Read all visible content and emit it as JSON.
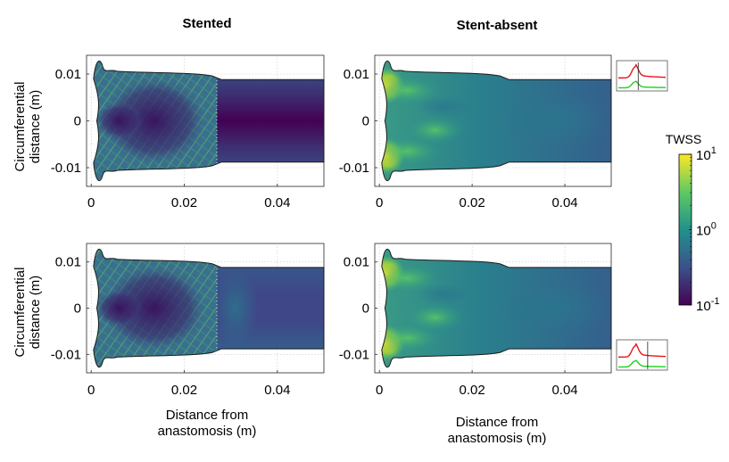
{
  "chart_data": {
    "type": "heatmap",
    "column_titles": [
      "Stented",
      "Stent-absent"
    ],
    "ylabel": [
      "Circumferential",
      "distance (m)"
    ],
    "xlabel": [
      "Distance from",
      "anastomosis (m)"
    ],
    "xlim": [
      -0.001,
      0.05
    ],
    "ylim": [
      -0.014,
      0.014
    ],
    "x_ticks": [
      0,
      0.02,
      0.04
    ],
    "x_tick_labels": [
      "0",
      "0.02",
      "0.04"
    ],
    "y_ticks": [
      0.01,
      0,
      -0.01
    ],
    "y_tick_labels": [
      "0.01",
      "0",
      "-0.01"
    ],
    "panels": [
      {
        "row": 1,
        "column": "Stented",
        "stent_end_x": 0.027
      },
      {
        "row": 1,
        "column": "Stent-absent"
      },
      {
        "row": 2,
        "column": "Stented",
        "stent_end_x": 0.027
      },
      {
        "row": 2,
        "column": "Stent-absent"
      }
    ],
    "colorbar": {
      "title": "TWSS",
      "scale": "log",
      "range": [
        0.1,
        10
      ],
      "tick_labels": [
        {
          "base": "10",
          "exp": "1",
          "value": 10
        },
        {
          "base": "10",
          "exp": "0",
          "value": 1
        },
        {
          "base": "10",
          "exp": "-1",
          "value": 0.1
        }
      ],
      "colormap": [
        "#440154",
        "#3b528b",
        "#21918c",
        "#5ec962",
        "#fde725"
      ]
    },
    "cycle_insets": [
      {
        "row": 1,
        "marker_phase": 0.42,
        "series_colors": [
          "#e8141c",
          "#1bd21b"
        ]
      },
      {
        "row": 2,
        "marker_phase": 0.62,
        "series_colors": [
          "#e8141c",
          "#1bd21b"
        ]
      }
    ]
  }
}
